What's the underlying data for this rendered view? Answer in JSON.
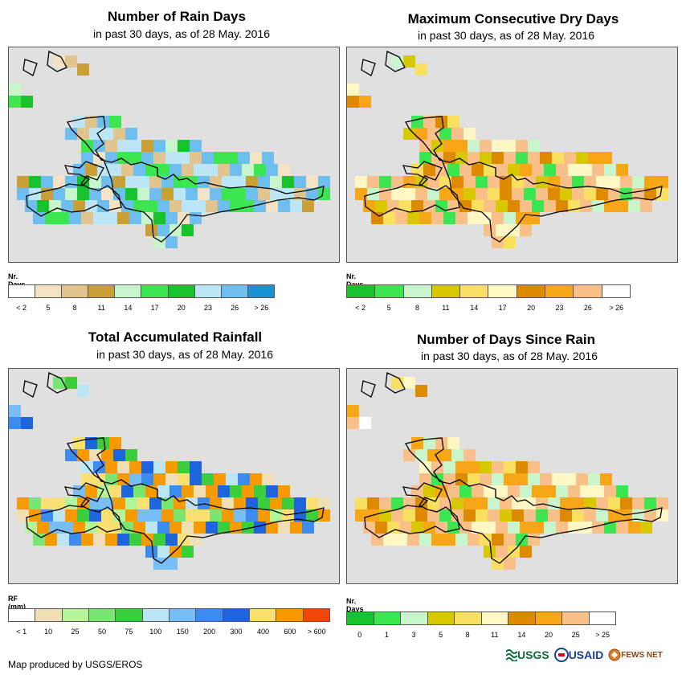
{
  "credit": "Map produced by USGS/EROS",
  "logos": {
    "usgs": "USGS",
    "usaid": "USAID",
    "fews": "FEWS NET"
  },
  "panels": [
    {
      "title": "Number of Rain Days",
      "subtitle": "in past 30 days, as of 28 May. 2016",
      "unit": "Nr. Days",
      "legend_colors": [
        "#ffffff",
        "#f4e2c4",
        "#e2c58e",
        "#c9a036",
        "#c8f5cc",
        "#3ce651",
        "#17c22c",
        "#bce6f6",
        "#6ebff0",
        "#1a93d4"
      ],
      "legend_labels": [
        "< 2",
        "5",
        "8",
        "11",
        "14",
        "17",
        "20",
        "23",
        "26",
        "> 26"
      ]
    },
    {
      "title": "Maximum Consecutive Dry Days",
      "subtitle": "in past 30 days, as of 28 May. 2016",
      "unit": "Nr. Days",
      "legend_colors": [
        "#17c22c",
        "#3ce651",
        "#c8f5cc",
        "#d8c800",
        "#fae060",
        "#fff7c4",
        "#de8a00",
        "#f6a616",
        "#fac08a",
        "#ffffff"
      ],
      "legend_labels": [
        "< 2",
        "5",
        "8",
        "11",
        "14",
        "17",
        "20",
        "23",
        "26",
        "> 26"
      ]
    },
    {
      "title": "Total Accumulated Rainfall",
      "subtitle": "in past 30 days, as of 28 May. 2016",
      "unit": "RF (mm)",
      "legend_colors": [
        "#ffffff",
        "#f0deb4",
        "#b4f59a",
        "#78e670",
        "#3ccd3c",
        "#bce6f6",
        "#78bef6",
        "#3c8cf0",
        "#1e64dc",
        "#fae070",
        "#f69a00",
        "#f0460a"
      ],
      "legend_labels": [
        "< 1",
        "10",
        "25",
        "50",
        "75",
        "100",
        "150",
        "200",
        "300",
        "400",
        "600",
        "> 600"
      ]
    },
    {
      "title": "Number of Days Since Rain",
      "subtitle": "in past 30 days, as of 28 May. 2016",
      "unit": "Nr. Days",
      "legend_colors": [
        "#17c22c",
        "#3ce651",
        "#c8f5cc",
        "#d8c800",
        "#fae060",
        "#fff7c4",
        "#de8a00",
        "#f6a616",
        "#fac08a",
        "#ffffff"
      ],
      "legend_labels": [
        "0",
        "1",
        "3",
        "5",
        "8",
        "11",
        "14",
        "20",
        "25",
        "> 25"
      ]
    }
  ]
}
